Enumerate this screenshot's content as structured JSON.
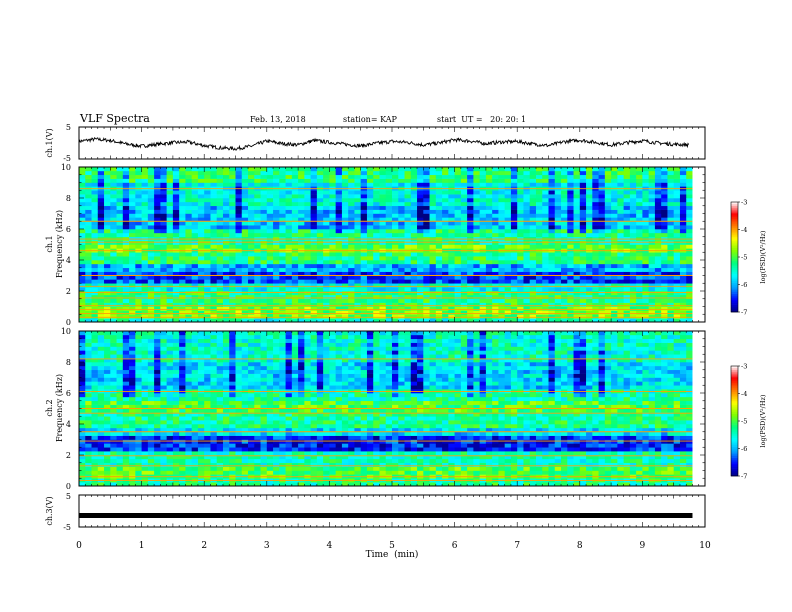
{
  "header": {
    "title": "VLF Spectra",
    "date": "Feb. 13, 2018",
    "station": "station= KAP",
    "start": "start  UT =   20: 20: 1"
  },
  "chart_data": [
    {
      "type": "line",
      "ylabel": "ch.1(V)",
      "ylim": [
        -5,
        5
      ],
      "y_ticks": [
        "5",
        "-5"
      ],
      "xlim": [
        0,
        10
      ],
      "description_series": "voltage trace",
      "x": [
        0,
        0.25,
        0.5,
        0.75,
        1.0,
        1.25,
        1.5,
        1.75,
        2.0,
        2.25,
        2.5,
        2.75,
        3.0,
        3.25,
        3.5,
        3.75,
        4.0,
        4.25,
        4.5,
        4.75,
        5.0,
        5.25,
        5.5,
        5.75,
        6.0,
        6.25,
        6.5,
        6.75,
        7.0,
        7.25,
        7.5,
        7.75,
        8.0,
        8.25,
        8.5,
        8.75,
        9.0,
        9.25,
        9.5,
        9.75
      ],
      "y": [
        0.5,
        1.2,
        0.8,
        -0.3,
        -1.0,
        -0.4,
        0.1,
        0.3,
        -0.8,
        -1.5,
        -1.8,
        -1.0,
        0.6,
        -0.2,
        -0.6,
        0.8,
        0.2,
        -0.4,
        -0.9,
        -0.1,
        0.5,
        0.2,
        -0.6,
        0.0,
        1.0,
        0.6,
        -0.2,
        0.3,
        0.5,
        -0.3,
        -0.8,
        0.4,
        0.9,
        0.2,
        -0.6,
        0.1,
        0.7,
        0.0,
        -0.4,
        -0.6
      ]
    },
    {
      "type": "heatmap",
      "ylabel": "ch.1",
      "ylabel2": "Frequency  (kHz)",
      "ylim": [
        0,
        10
      ],
      "y_ticks": [
        "0",
        "2",
        "4",
        "6",
        "8",
        "10"
      ],
      "xlim": [
        0,
        10
      ],
      "colorbar": {
        "label": "log(PSD)(V²/Hz)",
        "range": [
          -7,
          -3
        ],
        "ticks": [
          "-3",
          "-4",
          "-5",
          "-6",
          "-7"
        ]
      },
      "bands": [
        {
          "f0": 0.0,
          "f1": 0.3,
          "level": -5.5
        },
        {
          "f0": 0.3,
          "f1": 1.0,
          "level": -4.8
        },
        {
          "f0": 1.0,
          "f1": 2.0,
          "level": -5.2
        },
        {
          "f0": 2.0,
          "f1": 2.5,
          "level": -5.6
        },
        {
          "f0": 2.5,
          "f1": 3.3,
          "level": -6.4
        },
        {
          "f0": 3.3,
          "f1": 3.8,
          "level": -6.0
        },
        {
          "f0": 3.8,
          "f1": 4.6,
          "level": -5.2
        },
        {
          "f0": 4.6,
          "f1": 5.1,
          "level": -4.9
        },
        {
          "f0": 5.1,
          "f1": 6.0,
          "level": -5.3
        },
        {
          "f0": 6.0,
          "f1": 7.5,
          "level": -5.9
        },
        {
          "f0": 7.5,
          "f1": 9.0,
          "level": -5.6
        },
        {
          "f0": 9.0,
          "f1": 10.0,
          "level": -5.2
        }
      ],
      "lines_khz": [
        0.3,
        0.55,
        0.8,
        1.05,
        1.55,
        1.9,
        2.3,
        3.0,
        4.6,
        5.15,
        5.35,
        6.5,
        8.6
      ],
      "line_level": -4.0
    },
    {
      "type": "heatmap",
      "ylabel": "ch.2",
      "ylabel2": "Frequency  (kHz)",
      "ylim": [
        0,
        10
      ],
      "y_ticks": [
        "0",
        "2",
        "4",
        "6",
        "8",
        "10"
      ],
      "xlim": [
        0,
        10
      ],
      "colorbar": {
        "label": "log(PSD)(V²/Hz)",
        "range": [
          -7,
          -3
        ],
        "ticks": [
          "-3",
          "-4",
          "-5",
          "-6",
          "-7"
        ]
      },
      "bands": [
        {
          "f0": 0.0,
          "f1": 0.4,
          "level": -5.3
        },
        {
          "f0": 0.4,
          "f1": 1.3,
          "level": -5.0
        },
        {
          "f0": 1.3,
          "f1": 2.2,
          "level": -5.4
        },
        {
          "f0": 2.2,
          "f1": 3.2,
          "level": -6.5
        },
        {
          "f0": 3.2,
          "f1": 3.8,
          "level": -5.8
        },
        {
          "f0": 3.8,
          "f1": 4.7,
          "level": -5.3
        },
        {
          "f0": 4.7,
          "f1": 5.5,
          "level": -5.0
        },
        {
          "f0": 5.5,
          "f1": 6.2,
          "level": -5.4
        },
        {
          "f0": 6.2,
          "f1": 8.0,
          "level": -5.8
        },
        {
          "f0": 8.0,
          "f1": 10.0,
          "level": -5.5
        }
      ],
      "lines_khz": [
        0.35,
        0.6,
        1.3,
        1.95,
        2.9,
        3.5,
        4.7,
        5.0,
        6.1,
        8.2
      ],
      "line_level": -4.0
    },
    {
      "type": "line",
      "ylabel": "ch.3(V)",
      "ylim": [
        -5,
        5
      ],
      "y_ticks": [
        "5",
        "-5"
      ],
      "xlim": [
        0,
        10
      ],
      "x": [
        0,
        9.8
      ],
      "y": [
        -1.4,
        -1.4
      ]
    }
  ],
  "x_axis": {
    "label": "Time  (min)",
    "ticks": [
      "0",
      "1",
      "2",
      "3",
      "4",
      "5",
      "6",
      "7",
      "8",
      "9",
      "10"
    ]
  },
  "colors": {
    "colormap": [
      "#000080",
      "#0000ff",
      "#00a0ff",
      "#00ffff",
      "#00ff80",
      "#80ff00",
      "#ffff00",
      "#ff8000",
      "#ff0000",
      "#ffffff"
    ]
  }
}
